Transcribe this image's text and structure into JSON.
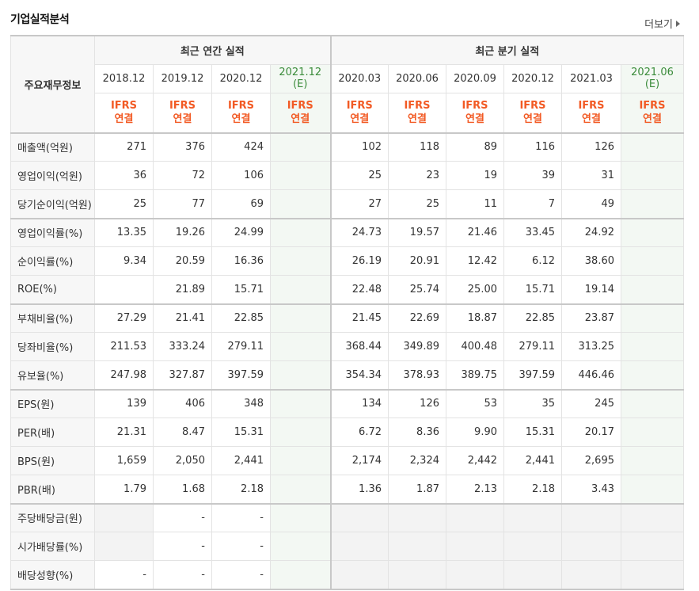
{
  "title": "기업실적분석",
  "more_label": "더보기",
  "header": {
    "label": "주요재무정보",
    "annual_group": "최근 연간 실적",
    "quarter_group": "최근 분기 실적",
    "annual_dates": [
      "2018.12",
      "2019.12",
      "2020.12"
    ],
    "annual_estimate": {
      "date": "2021.12",
      "tag": "(E)"
    },
    "quarter_dates": [
      "2020.03",
      "2020.06",
      "2020.09",
      "2020.12",
      "2021.03"
    ],
    "quarter_estimate": {
      "date": "2021.06",
      "tag": "(E)"
    },
    "ifrs_line1": "IFRS",
    "ifrs_line2": "연결"
  },
  "rows": [
    {
      "label": "매출액(억원)",
      "annual": [
        "271",
        "376",
        "424",
        ""
      ],
      "quarter": [
        "102",
        "118",
        "89",
        "116",
        "126",
        ""
      ]
    },
    {
      "label": "영업이익(억원)",
      "annual": [
        "36",
        "72",
        "106",
        ""
      ],
      "quarter": [
        "25",
        "23",
        "19",
        "39",
        "31",
        ""
      ]
    },
    {
      "label": "당기순이익(억원)",
      "annual": [
        "25",
        "77",
        "69",
        ""
      ],
      "quarter": [
        "27",
        "25",
        "11",
        "7",
        "49",
        ""
      ]
    },
    {
      "label": "영업이익률(%)",
      "annual": [
        "13.35",
        "19.26",
        "24.99",
        ""
      ],
      "quarter": [
        "24.73",
        "19.57",
        "21.46",
        "33.45",
        "24.92",
        ""
      ]
    },
    {
      "label": "순이익률(%)",
      "annual": [
        "9.34",
        "20.59",
        "16.36",
        ""
      ],
      "quarter": [
        "26.19",
        "20.91",
        "12.42",
        "6.12",
        "38.60",
        ""
      ]
    },
    {
      "label": "ROE(%)",
      "annual": [
        "",
        "21.89",
        "15.71",
        ""
      ],
      "quarter": [
        "22.48",
        "25.74",
        "25.00",
        "15.71",
        "19.14",
        ""
      ]
    },
    {
      "label": "부채비율(%)",
      "annual": [
        "27.29",
        "21.41",
        "22.85",
        ""
      ],
      "quarter": [
        "21.45",
        "22.69",
        "18.87",
        "22.85",
        "23.87",
        ""
      ]
    },
    {
      "label": "당좌비율(%)",
      "annual": [
        "211.53",
        "333.24",
        "279.11",
        ""
      ],
      "quarter": [
        "368.44",
        "349.89",
        "400.48",
        "279.11",
        "313.25",
        ""
      ]
    },
    {
      "label": "유보율(%)",
      "annual": [
        "247.98",
        "327.87",
        "397.59",
        ""
      ],
      "quarter": [
        "354.34",
        "378.93",
        "389.75",
        "397.59",
        "446.46",
        ""
      ]
    },
    {
      "label": "EPS(원)",
      "annual": [
        "139",
        "406",
        "348",
        ""
      ],
      "quarter": [
        "134",
        "126",
        "53",
        "35",
        "245",
        ""
      ]
    },
    {
      "label": "PER(배)",
      "annual": [
        "21.31",
        "8.47",
        "15.31",
        ""
      ],
      "quarter": [
        "6.72",
        "8.36",
        "9.90",
        "15.31",
        "20.17",
        ""
      ]
    },
    {
      "label": "BPS(원)",
      "annual": [
        "1,659",
        "2,050",
        "2,441",
        ""
      ],
      "quarter": [
        "2,174",
        "2,324",
        "2,442",
        "2,441",
        "2,695",
        ""
      ]
    },
    {
      "label": "PBR(배)",
      "annual": [
        "1.79",
        "1.68",
        "2.18",
        ""
      ],
      "quarter": [
        "1.36",
        "1.87",
        "2.13",
        "2.18",
        "3.43",
        ""
      ]
    },
    {
      "label": "주당배당금(원)",
      "annual": [
        "",
        "-",
        "-",
        ""
      ],
      "quarter": [
        "",
        "",
        "",
        "",
        "",
        ""
      ]
    },
    {
      "label": "시가배당률(%)",
      "annual": [
        "",
        "-",
        "-",
        ""
      ],
      "quarter": [
        "",
        "",
        "",
        "",
        "",
        ""
      ]
    },
    {
      "label": "배당성향(%)",
      "annual": [
        "-",
        "-",
        "-",
        ""
      ],
      "quarter": [
        "",
        "",
        "",
        "",
        "",
        ""
      ]
    }
  ]
}
